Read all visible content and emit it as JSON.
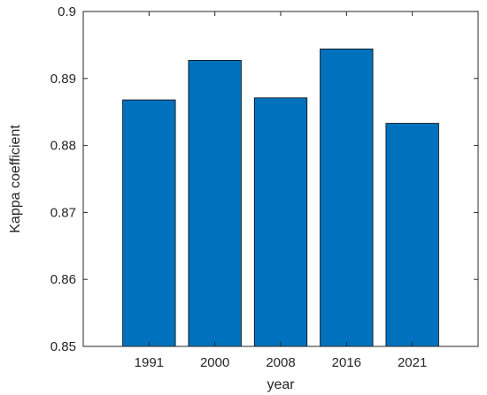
{
  "chart_data": {
    "type": "bar",
    "categories": [
      "1991",
      "2000",
      "2008",
      "2016",
      "2021"
    ],
    "values": [
      0.8868,
      0.8927,
      0.8871,
      0.8944,
      0.8833
    ],
    "xlabel": "year",
    "ylabel": "Kappa coefficient",
    "ylim": [
      0.85,
      0.9
    ],
    "yticks": [
      "0.85",
      "0.86",
      "0.87",
      "0.88",
      "0.89",
      "0.9"
    ],
    "grid": false,
    "bar_color": "#0072BD",
    "bar_edge_color": "#000000",
    "axis_color": "#262626"
  }
}
